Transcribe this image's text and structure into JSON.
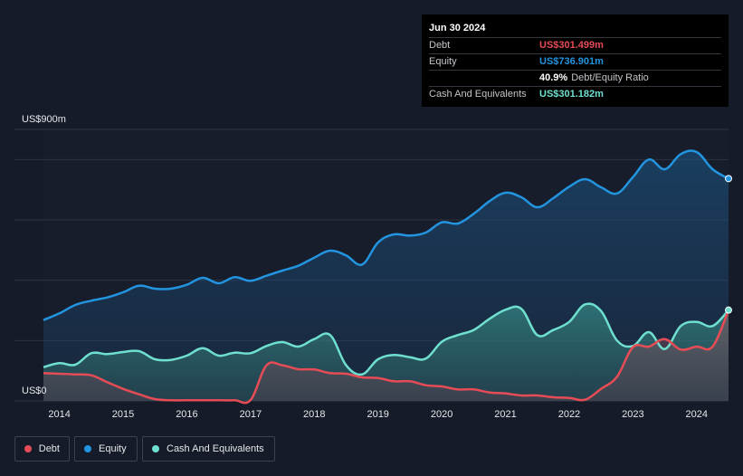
{
  "tooltip": {
    "date": "Jun 30 2024",
    "debt_label": "Debt",
    "debt_value": "US$301.499m",
    "equity_label": "Equity",
    "equity_value": "US$736.901m",
    "ratio_value": "40.9%",
    "ratio_label": "Debt/Equity Ratio",
    "cash_label": "Cash And Equivalents",
    "cash_value": "US$301.182m"
  },
  "legend": {
    "debt": "Debt",
    "equity": "Equity",
    "cash": "Cash And Equivalents"
  },
  "colors": {
    "background": "#151b28",
    "debt": "#e64c55",
    "equity": "#2394df",
    "cash": "#6fe0cf",
    "grid": "#2e3442"
  },
  "chart_data": {
    "type": "area",
    "title": "",
    "xlabel": "",
    "ylabel": "",
    "ymax_label": "US$900m",
    "ymin_label": "US$0",
    "xlim": [
      2013.75,
      2024.5
    ],
    "ylim": [
      0,
      900
    ],
    "x_ticks": [
      "2014",
      "2015",
      "2016",
      "2017",
      "2018",
      "2019",
      "2020",
      "2021",
      "2022",
      "2023",
      "2024"
    ],
    "x_tick_values": [
      2014,
      2015,
      2016,
      2017,
      2018,
      2019,
      2020,
      2021,
      2022,
      2023,
      2024
    ],
    "series": [
      {
        "name": "Equity",
        "x": [
          2013.75,
          2014,
          2014.25,
          2014.5,
          2014.75,
          2015,
          2015.25,
          2015.5,
          2015.75,
          2016,
          2016.25,
          2016.5,
          2016.75,
          2017,
          2017.25,
          2017.5,
          2017.75,
          2018,
          2018.25,
          2018.5,
          2018.75,
          2019,
          2019.25,
          2019.5,
          2019.75,
          2020,
          2020.25,
          2020.5,
          2020.75,
          2021,
          2021.25,
          2021.5,
          2021.75,
          2022,
          2022.25,
          2022.5,
          2022.75,
          2023,
          2023.25,
          2023.5,
          2023.75,
          2024,
          2024.25,
          2024.5
        ],
        "values": [
          268,
          290,
          318,
          332,
          343,
          360,
          382,
          372,
          372,
          385,
          408,
          390,
          410,
          398,
          415,
          432,
          448,
          475,
          498,
          482,
          452,
          525,
          552,
          548,
          558,
          592,
          588,
          620,
          662,
          690,
          675,
          642,
          672,
          710,
          735,
          708,
          688,
          742,
          800,
          768,
          818,
          825,
          768,
          737
        ]
      },
      {
        "name": "Cash And Equivalents",
        "x": [
          2013.75,
          2014,
          2014.25,
          2014.5,
          2014.75,
          2015,
          2015.25,
          2015.5,
          2015.75,
          2016,
          2016.25,
          2016.5,
          2016.75,
          2017,
          2017.25,
          2017.5,
          2017.75,
          2018,
          2018.25,
          2018.5,
          2018.75,
          2019,
          2019.25,
          2019.5,
          2019.75,
          2020,
          2020.25,
          2020.5,
          2020.75,
          2021,
          2021.25,
          2021.5,
          2021.75,
          2022,
          2022.25,
          2022.5,
          2022.75,
          2023,
          2023.25,
          2023.5,
          2023.75,
          2024,
          2024.25,
          2024.5
        ],
        "values": [
          112,
          125,
          120,
          158,
          155,
          162,
          165,
          138,
          136,
          150,
          175,
          150,
          160,
          158,
          182,
          195,
          180,
          205,
          218,
          118,
          88,
          138,
          152,
          145,
          140,
          196,
          218,
          235,
          272,
          302,
          305,
          218,
          235,
          262,
          320,
          298,
          200,
          182,
          228,
          172,
          248,
          262,
          248,
          301
        ]
      },
      {
        "name": "Debt",
        "x": [
          2013.75,
          2014,
          2014.25,
          2014.5,
          2014.75,
          2015,
          2015.25,
          2015.5,
          2015.75,
          2016,
          2016.25,
          2016.5,
          2016.75,
          2017,
          2017.25,
          2017.5,
          2017.75,
          2018,
          2018.25,
          2018.5,
          2018.75,
          2019,
          2019.25,
          2019.5,
          2019.75,
          2020,
          2020.25,
          2020.5,
          2020.75,
          2021,
          2021.25,
          2021.5,
          2021.75,
          2022,
          2022.25,
          2022.5,
          2022.75,
          2023,
          2023.25,
          2023.5,
          2023.75,
          2024,
          2024.25,
          2024.5
        ],
        "values": [
          92,
          90,
          88,
          85,
          62,
          40,
          22,
          6,
          2,
          2,
          2,
          2,
          2,
          3,
          118,
          118,
          105,
          104,
          92,
          90,
          78,
          76,
          65,
          65,
          52,
          48,
          38,
          38,
          28,
          25,
          18,
          18,
          12,
          10,
          4,
          40,
          80,
          178,
          180,
          205,
          170,
          180,
          180,
          301
        ]
      }
    ]
  }
}
